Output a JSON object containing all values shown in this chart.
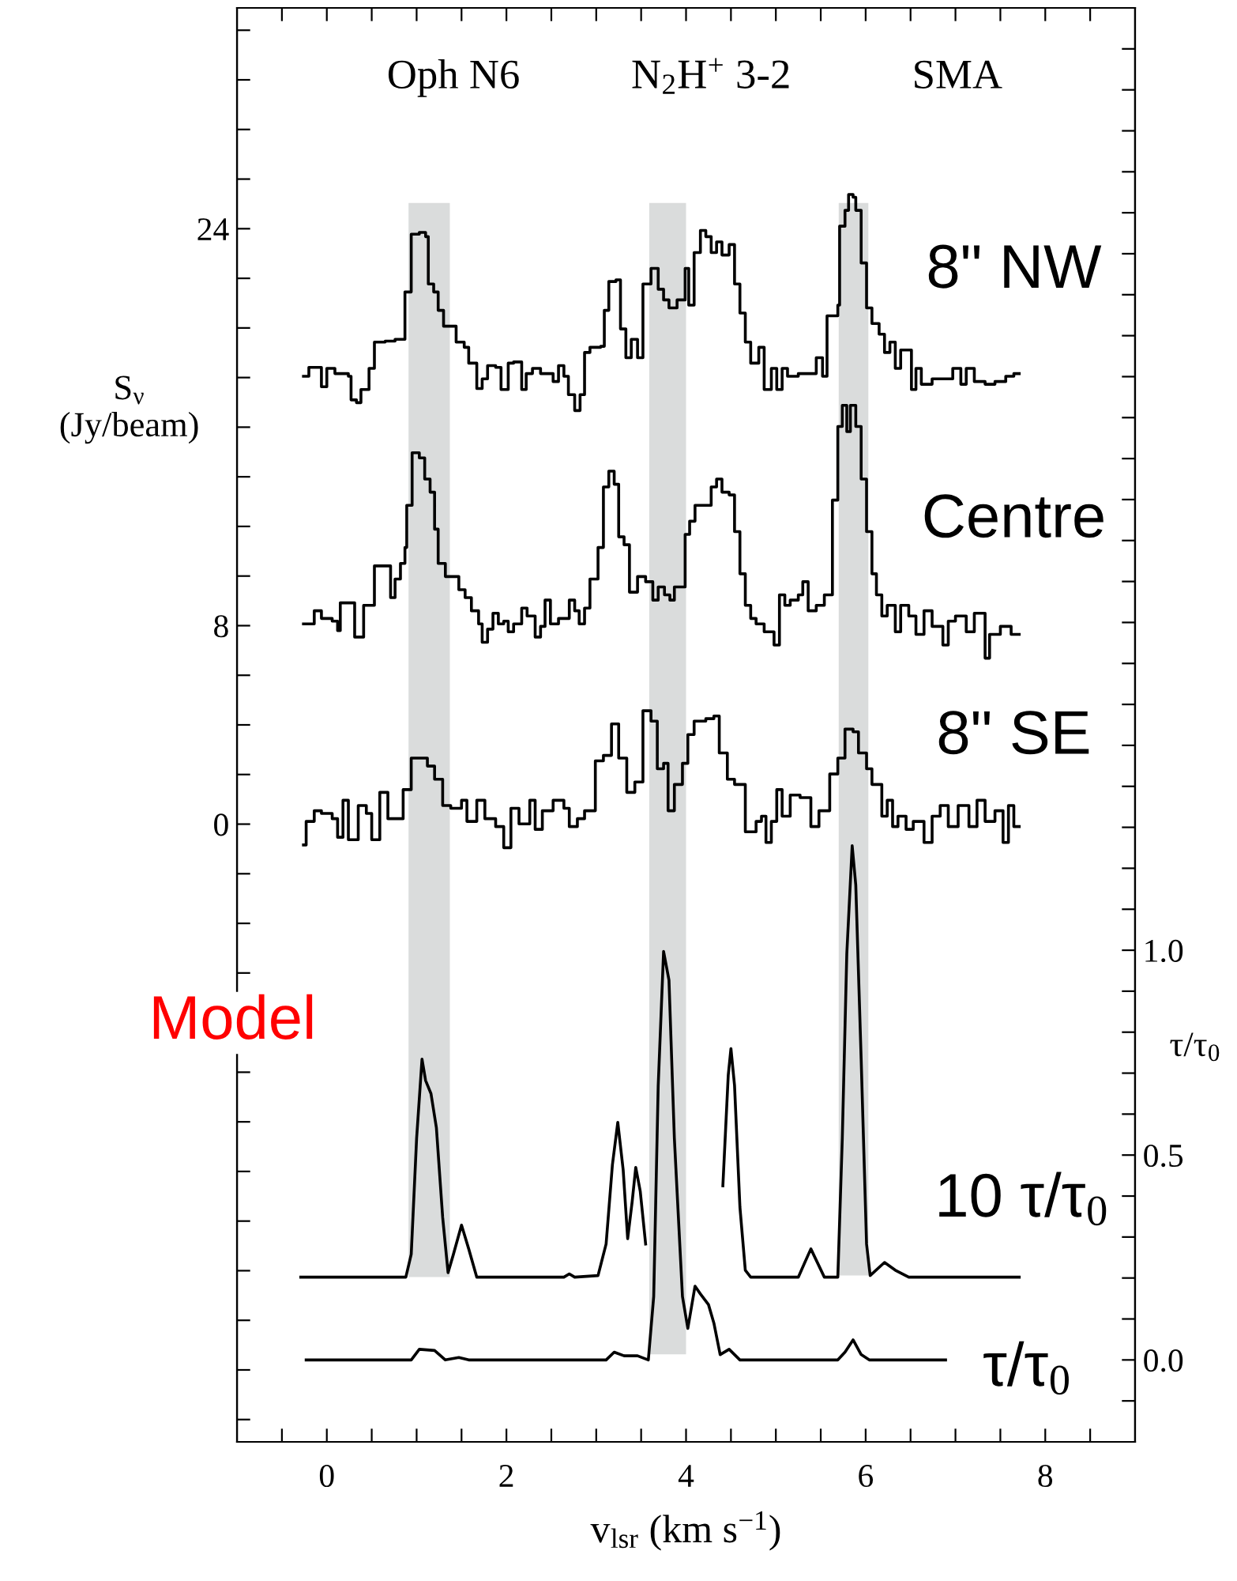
{
  "chart_data": {
    "type": "step",
    "annotations": [
      "Oph N6",
      "N$_{2}$H$^{+}$ 3-2",
      "SMA",
      "Model"
    ],
    "xlabel": "v$_{lsr}$ (km s$^{−1}$)",
    "ylabel": "S$_{ν}$\n(Jy/beam)",
    "y2label": "τ/τ$_{0}$",
    "xlim": [
      -1,
      9
    ],
    "xticks": [
      {
        "value": -0.5,
        "label": null
      },
      0,
      {
        "value": 0.5,
        "label": null
      },
      {
        "value": 1,
        "label": null
      },
      {
        "value": 1.5,
        "label": null
      },
      2,
      {
        "value": 2.5,
        "label": null
      },
      {
        "value": 3,
        "label": null
      },
      {
        "value": 3.5,
        "label": null
      },
      4,
      {
        "value": 4.5,
        "label": null
      },
      {
        "value": 5,
        "label": null
      },
      {
        "value": 5.5,
        "label": null
      },
      6,
      {
        "value": 6.5,
        "label": null
      },
      {
        "value": 7,
        "label": null
      },
      {
        "value": 7.5,
        "label": null
      },
      8,
      {
        "value": 8.5,
        "label": null
      }
    ],
    "ylim": [
      -24.9,
      32.9
    ],
    "yticks": [
      {
        "value": -24,
        "label": null
      },
      {
        "value": -22,
        "label": null
      },
      {
        "value": -20,
        "label": null
      },
      {
        "value": -18,
        "label": null
      },
      {
        "value": -16,
        "label": null
      },
      {
        "value": -14,
        "label": null
      },
      {
        "value": -12,
        "label": null
      },
      {
        "value": -10,
        "label": null
      },
      {
        "value": -8,
        "label": null
      },
      {
        "value": -6,
        "label": null
      },
      {
        "value": -4,
        "label": null
      },
      {
        "value": -2,
        "label": null
      },
      0,
      {
        "value": 2,
        "label": null
      },
      {
        "value": 4,
        "label": null
      },
      {
        "value": 6,
        "label": null
      },
      8,
      {
        "value": 10,
        "label": null
      },
      {
        "value": 12,
        "label": null
      },
      {
        "value": 14,
        "label": null
      },
      {
        "value": 16,
        "label": null
      },
      {
        "value": 18,
        "label": null
      },
      {
        "value": 20,
        "label": null
      },
      {
        "value": 22,
        "label": null
      },
      24,
      {
        "value": 26,
        "label": null
      },
      {
        "value": 28,
        "label": null
      },
      {
        "value": 30,
        "label": null
      },
      {
        "value": 32,
        "label": null
      }
    ],
    "y2lim": [
      -0.2,
      3.3
    ],
    "y2ticks": [
      {
        "value": -0.1,
        "label": null
      },
      {
        "value": 0,
        "label": "0.0"
      },
      {
        "value": 0.1,
        "label": null
      },
      {
        "value": 0.2,
        "label": null
      },
      {
        "value": 0.3,
        "label": null
      },
      {
        "value": 0.4,
        "label": null
      },
      {
        "value": 0.5,
        "label": "0.5"
      },
      {
        "value": 0.6,
        "label": null
      },
      {
        "value": 0.7,
        "label": null
      },
      {
        "value": 0.8,
        "label": null
      },
      {
        "value": 0.9,
        "label": null
      },
      {
        "value": 1.0,
        "label": "1.0"
      },
      {
        "value": 1.1,
        "label": null
      },
      {
        "value": 1.2,
        "label": null
      },
      {
        "value": 1.3,
        "label": null
      },
      {
        "value": 1.4,
        "label": null
      },
      {
        "value": 1.5,
        "label": null
      },
      {
        "value": 1.6,
        "label": null
      },
      {
        "value": 1.7,
        "label": null
      },
      {
        "value": 1.8,
        "label": null
      },
      {
        "value": 1.9,
        "label": null
      },
      {
        "value": 2.0,
        "label": null
      },
      {
        "value": 2.1,
        "label": null
      },
      {
        "value": 2.2,
        "label": null
      },
      {
        "value": 2.3,
        "label": null
      },
      {
        "value": 2.4,
        "label": null
      },
      {
        "value": 2.5,
        "label": null
      },
      {
        "value": 2.6,
        "label": null
      },
      {
        "value": 2.7,
        "label": null
      },
      {
        "value": 2.8,
        "label": null
      },
      {
        "value": 2.9,
        "label": null
      },
      {
        "value": 3.0,
        "label": null
      },
      {
        "value": 3.1,
        "label": null
      },
      {
        "value": 3.2,
        "label": null
      }
    ],
    "bands": [
      {
        "axis": "x",
        "from": 0.91,
        "to": 1.37,
        "color": "#dadcdc"
      },
      {
        "axis": "x",
        "from": 3.59,
        "to": 4.0,
        "color": "#dadcdc"
      },
      {
        "axis": "x",
        "from": 5.7,
        "to": 6.03,
        "color": "#dadcdc"
      }
    ],
    "series": [
      {
        "name": "8\" NW",
        "color": "#000000",
        "x": [
          -0.26,
          -0.2,
          -0.09,
          -0.06,
          0.0,
          0.09,
          0.24,
          0.27,
          0.33,
          0.38,
          0.47,
          0.53,
          0.65,
          0.76,
          0.87,
          0.94,
          1.03,
          1.1,
          1.13,
          1.19,
          1.24,
          1.3,
          1.38,
          1.44,
          1.53,
          1.58,
          1.67,
          1.73,
          1.79,
          1.88,
          1.94,
          2.02,
          2.08,
          2.17,
          2.22,
          2.29,
          2.38,
          2.46,
          2.52,
          2.58,
          2.64,
          2.69,
          2.76,
          2.82,
          2.87,
          2.93,
          3.05,
          3.09,
          3.14,
          3.22,
          3.27,
          3.33,
          3.39,
          3.46,
          3.52,
          3.61,
          3.66,
          3.69,
          3.75,
          3.81,
          3.9,
          3.99,
          4.03,
          4.09,
          4.16,
          4.22,
          4.28,
          4.34,
          4.4,
          4.48,
          4.54,
          4.6,
          4.66,
          4.72,
          4.78,
          4.81,
          4.87,
          4.95,
          5.01,
          5.07,
          5.13,
          5.25,
          5.39,
          5.45,
          5.52,
          5.57,
          5.69,
          5.71,
          5.77,
          5.81,
          5.86,
          5.89,
          5.95,
          6.01,
          6.07,
          6.15,
          6.21,
          6.27,
          6.33,
          6.39,
          6.51,
          6.56,
          6.62,
          6.74,
          6.86,
          6.97,
          7.06,
          7.12,
          7.21,
          7.33,
          7.44,
          7.56,
          7.65,
          7.71
        ],
        "values": [
          18.05,
          18.41,
          18.41,
          17.63,
          18.37,
          18.16,
          18.05,
          17.1,
          16.99,
          17.52,
          18.37,
          19.43,
          19.47,
          19.54,
          21.45,
          23.78,
          23.85,
          23.68,
          21.77,
          21.45,
          20.71,
          20.07,
          20.07,
          19.43,
          19.22,
          18.58,
          17.56,
          17.95,
          18.48,
          18.41,
          17.52,
          18.58,
          18.63,
          17.52,
          18.16,
          18.37,
          18.16,
          18.16,
          17.84,
          18.48,
          18.05,
          17.31,
          16.67,
          17.31,
          19.01,
          19.22,
          19.26,
          20.71,
          21.87,
          21.94,
          19.96,
          18.8,
          19.54,
          18.8,
          21.77,
          22.4,
          22.4,
          21.56,
          21.13,
          20.81,
          21.13,
          22.4,
          20.92,
          23.04,
          23.93,
          23.68,
          23.04,
          23.47,
          22.94,
          23.36,
          21.77,
          20.6,
          19.43,
          18.58,
          18.58,
          19.22,
          17.52,
          18.37,
          17.52,
          18.37,
          18.05,
          18.16,
          18.16,
          18.8,
          18.05,
          20.49,
          20.92,
          24.1,
          24.74,
          25.38,
          25.27,
          24.74,
          22.62,
          20.81,
          20.18,
          19.75,
          19.01,
          19.43,
          18.37,
          19.11,
          17.52,
          18.37,
          17.73,
          17.95,
          17.95,
          18.37,
          17.73,
          18.37,
          17.84,
          17.73,
          17.84,
          18.05,
          18.16,
          18.16
        ]
      },
      {
        "name": "Centre",
        "color": "#000000",
        "x": [
          -0.26,
          -0.14,
          -0.06,
          0.06,
          0.12,
          0.15,
          0.24,
          0.31,
          0.37,
          0.41,
          0.47,
          0.53,
          0.65,
          0.71,
          0.76,
          0.82,
          0.87,
          0.89,
          0.95,
          1.03,
          1.09,
          1.15,
          1.2,
          1.24,
          1.32,
          1.41,
          1.47,
          1.54,
          1.61,
          1.69,
          1.73,
          1.79,
          1.85,
          1.91,
          1.97,
          2.02,
          2.08,
          2.17,
          2.23,
          2.32,
          2.38,
          2.43,
          2.49,
          2.58,
          2.7,
          2.76,
          2.81,
          2.87,
          2.93,
          3.02,
          3.08,
          3.14,
          3.2,
          3.25,
          3.31,
          3.37,
          3.46,
          3.55,
          3.63,
          3.69,
          3.76,
          3.82,
          3.87,
          3.99,
          4.04,
          4.1,
          4.19,
          4.28,
          4.34,
          4.4,
          4.48,
          4.54,
          4.6,
          4.66,
          4.72,
          4.78,
          4.87,
          4.98,
          5.04,
          5.1,
          5.16,
          5.25,
          5.3,
          5.36,
          5.45,
          5.54,
          5.63,
          5.69,
          5.74,
          5.79,
          5.83,
          5.89,
          5.95,
          6.01,
          6.07,
          6.12,
          6.18,
          6.24,
          6.33,
          6.39,
          6.48,
          6.56,
          6.65,
          6.74,
          6.86,
          6.92,
          7.0,
          7.12,
          7.21,
          7.33,
          7.38,
          7.5,
          7.62,
          7.71
        ],
        "values": [
          8.07,
          8.6,
          8.29,
          8.18,
          7.8,
          8.92,
          8.92,
          7.54,
          7.54,
          8.82,
          8.82,
          10.41,
          10.41,
          9.13,
          9.88,
          10.51,
          11.15,
          12.85,
          14.97,
          14.76,
          13.91,
          13.38,
          11.89,
          10.51,
          9.98,
          9.98,
          9.45,
          9.13,
          8.6,
          8.07,
          7.33,
          7.86,
          8.5,
          8.07,
          8.18,
          7.75,
          8.07,
          8.71,
          8.39,
          7.54,
          7.97,
          9.03,
          8.07,
          8.29,
          9.03,
          8.6,
          8.07,
          8.71,
          9.88,
          11.15,
          13.59,
          14.23,
          13.7,
          11.58,
          11.26,
          9.35,
          9.98,
          9.77,
          9.03,
          9.56,
          9.24,
          9.03,
          9.56,
          11.68,
          12.21,
          12.85,
          12.85,
          13.59,
          13.91,
          13.38,
          13.27,
          11.79,
          10.09,
          8.82,
          8.29,
          8.07,
          7.75,
          7.22,
          9.24,
          8.82,
          9.03,
          9.24,
          9.77,
          8.6,
          8.82,
          9.24,
          13.06,
          16.03,
          16.88,
          15.82,
          16.88,
          16.03,
          13.91,
          11.79,
          10.09,
          9.24,
          8.39,
          8.82,
          7.75,
          8.82,
          8.39,
          7.65,
          8.6,
          7.97,
          7.22,
          8.18,
          8.39,
          7.75,
          8.5,
          6.69,
          7.65,
          7.97,
          7.65,
          7.65
        ]
      },
      {
        "name": "8\" SE",
        "color": "#000000",
        "x": [
          -0.26,
          -0.23,
          -0.14,
          -0.06,
          0.06,
          0.12,
          0.18,
          0.24,
          0.35,
          0.44,
          0.5,
          0.59,
          0.68,
          0.79,
          0.85,
          0.94,
          1.03,
          1.12,
          1.2,
          1.29,
          1.38,
          1.5,
          1.56,
          1.67,
          1.76,
          1.88,
          1.97,
          2.05,
          2.14,
          2.26,
          2.32,
          2.4,
          2.52,
          2.64,
          2.7,
          2.79,
          2.87,
          2.99,
          3.08,
          3.17,
          3.25,
          3.34,
          3.43,
          3.52,
          3.61,
          3.68,
          3.75,
          3.8,
          3.87,
          3.96,
          4.02,
          4.09,
          4.22,
          4.31,
          4.37,
          4.46,
          4.54,
          4.66,
          4.78,
          4.84,
          4.89,
          4.95,
          5.01,
          5.07,
          5.16,
          5.27,
          5.39,
          5.48,
          5.6,
          5.69,
          5.77,
          5.86,
          5.92,
          6.01,
          6.07,
          6.12,
          6.18,
          6.24,
          6.3,
          6.36,
          6.45,
          6.53,
          6.65,
          6.74,
          6.83,
          6.92,
          7.03,
          7.15,
          7.24,
          7.33,
          7.44,
          7.53,
          7.59,
          7.65,
          7.71
        ],
        "values": [
          -0.84,
          0.11,
          0.54,
          0.43,
          0.22,
          -0.53,
          0.96,
          -0.63,
          0.75,
          0.43,
          -0.63,
          1.28,
          0.22,
          0.22,
          1.39,
          2.66,
          2.66,
          2.34,
          1.81,
          0.75,
          0.64,
          0.96,
          0.11,
          0.96,
          0.22,
          -0.1,
          -0.95,
          0.64,
          0.01,
          0.96,
          -0.21,
          0.54,
          0.96,
          0.64,
          -0.1,
          0.22,
          0.54,
          2.55,
          2.77,
          4.04,
          2.66,
          1.28,
          1.7,
          4.57,
          4.15,
          2.23,
          2.45,
          0.54,
          1.6,
          2.45,
          3.61,
          4.15,
          4.25,
          4.36,
          2.87,
          1.81,
          1.6,
          -0.31,
          0.11,
          0.32,
          -0.74,
          0.11,
          1.39,
          0.32,
          1.17,
          1.07,
          -0.1,
          0.54,
          2.02,
          2.66,
          3.83,
          3.72,
          2.87,
          2.23,
          1.6,
          1.6,
          0.32,
          0.96,
          -0.1,
          0.32,
          -0.21,
          0.11,
          -0.74,
          0.32,
          0.75,
          -0.1,
          0.75,
          -0.1,
          0.96,
          0.11,
          0.54,
          -0.74,
          0.75,
          -0.1,
          -0.1
        ]
      },
      {
        "name": "10 τ/τ$_{0}$",
        "color": "#000000",
        "type": "line",
        "axis": "y2",
        "x": [
          -0.29,
          0.88,
          0.94,
          1.0,
          1.06,
          1.1,
          1.16,
          1.22,
          1.29,
          1.35,
          1.41,
          1.5,
          1.58,
          1.67,
          2.64,
          2.7,
          2.76,
          3.02,
          3.11,
          3.18,
          3.24,
          3.3,
          3.35,
          3.4,
          3.44,
          3.49,
          3.55,
          3.9,
          4.41,
          4.47,
          4.5,
          4.54,
          4.6,
          4.66,
          4.72,
          5.25,
          5.39,
          5.54,
          5.69,
          5.74,
          5.79,
          5.85,
          5.89,
          5.95,
          6.01,
          6.05,
          6.21,
          6.33,
          6.48,
          7.71
        ],
        "values": [
          0.202,
          0.202,
          0.258,
          0.541,
          0.734,
          0.682,
          0.65,
          0.567,
          0.348,
          0.213,
          0.258,
          0.329,
          0.271,
          0.202,
          0.202,
          0.21,
          0.202,
          0.206,
          0.283,
          0.476,
          0.58,
          0.464,
          0.296,
          0.386,
          0.47,
          0.412,
          0.283,
          null,
          0.425,
          0.695,
          0.76,
          0.67,
          0.373,
          0.219,
          0.202,
          0.202,
          0.271,
          0.202,
          0.202,
          0.541,
          0.991,
          1.255,
          1.159,
          0.734,
          0.283,
          0.206,
          0.238,
          0.219,
          0.202,
          0.202
        ]
      },
      {
        "name": "τ/τ$_{0}$",
        "color": "#000000",
        "type": "line",
        "axis": "y2",
        "x": [
          -0.23,
          0.94,
          1.03,
          1.2,
          1.32,
          1.47,
          1.58,
          3.11,
          3.2,
          3.31,
          3.46,
          3.58,
          3.64,
          3.69,
          3.75,
          3.81,
          3.87,
          3.96,
          4.02,
          4.1,
          4.16,
          4.25,
          4.31,
          4.38,
          4.48,
          4.6,
          5.69,
          5.77,
          5.86,
          5.95,
          6.04,
          6.89
        ],
        "values": [
          0.0,
          0.0,
          0.026,
          0.023,
          0.0,
          0.006,
          0.0,
          0.0,
          0.019,
          0.01,
          0.01,
          0.0,
          0.155,
          0.669,
          0.997,
          0.927,
          0.541,
          0.155,
          0.077,
          0.18,
          0.161,
          0.135,
          0.09,
          0.013,
          0.026,
          0.0,
          0.0,
          0.019,
          0.049,
          0.013,
          0.0,
          0.0
        ]
      }
    ]
  }
}
